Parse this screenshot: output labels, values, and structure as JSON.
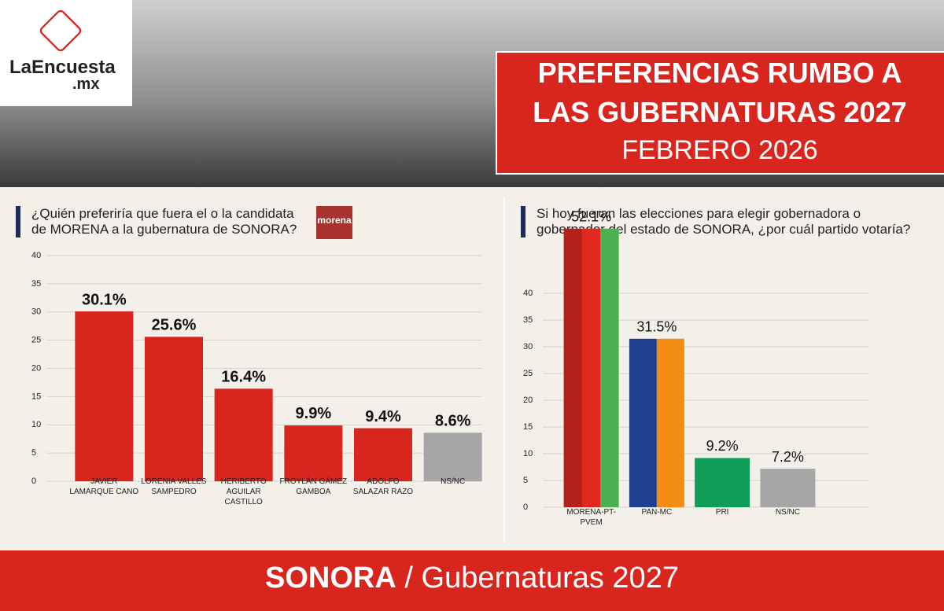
{
  "header": {
    "brand": "LaEncuesta",
    "brand_suffix": ".mx",
    "title_lines": [
      "PREFERENCIAS RUMBO A",
      "LAS GUBERNATURAS 2027"
    ],
    "subtitle": "FEBRERO 2026"
  },
  "chart_data": [
    {
      "type": "bar",
      "title": "¿Quién preferiría que fuera el o la candidata de MORENA a la gubernatura de SONORA?",
      "logo": "morena",
      "categories": [
        "JAVIER LAMARQUE CANO",
        "LORENIA VALLES SAMPEDRO",
        "HERIBERTO AGUILAR CASTILLO",
        "FROYLÁN GÁMEZ GAMBOA",
        "ADOLFO SALAZAR RAZO",
        "NS/NC"
      ],
      "values": [
        30.1,
        25.6,
        16.4,
        9.9,
        9.4,
        8.6
      ],
      "value_labels": [
        "30.1%",
        "25.6%",
        "16.4%",
        "9.9%",
        "9.4%",
        "8.6%"
      ],
      "colors": [
        [
          "#d8261e"
        ],
        [
          "#d8261e"
        ],
        [
          "#d8261e"
        ],
        [
          "#d8261e"
        ],
        [
          "#d8261e"
        ],
        [
          "#a6a6a6"
        ]
      ],
      "ylim": [
        0,
        40
      ],
      "yticks": [
        0,
        5,
        10,
        15,
        20,
        25,
        30,
        35,
        40
      ],
      "grid": true
    },
    {
      "type": "bar",
      "title": "Si hoy fueran las elecciones para elegir gobernadora o gobernador del estado de SONORA, ¿por cuál partido votaría?",
      "categories": [
        "MORENA-PT-PVEM",
        "PAN-MC",
        "PRI",
        "NS/NC"
      ],
      "values": [
        52.1,
        31.5,
        9.2,
        7.2
      ],
      "value_labels": [
        "52.1%",
        "31.5%",
        "9.2%",
        "7.2%"
      ],
      "colors": [
        [
          "#b5201a",
          "#e0281f",
          "#4caf50"
        ],
        [
          "#1f3f8f",
          "#f28c12"
        ],
        [
          "#0f9d58"
        ],
        [
          "#a6a6a6"
        ]
      ],
      "ylim": [
        0,
        40
      ],
      "yticks": [
        0,
        5,
        10,
        15,
        20,
        25,
        30,
        35,
        40
      ],
      "grid": true
    }
  ],
  "footer": {
    "bold": "SONORA",
    "rest": "/ Gubernaturas 2027"
  }
}
